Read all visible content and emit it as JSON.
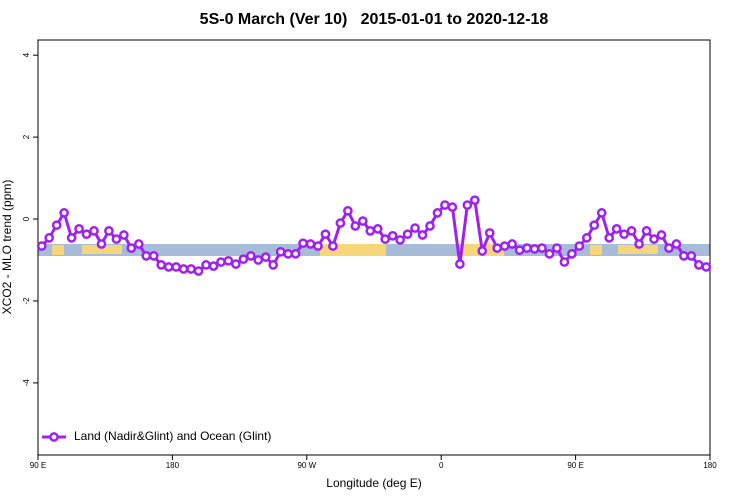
{
  "chart_data": {
    "type": "line",
    "title": "5S-0 March (Ver 10)   2015-01-01 to 2020-12-18",
    "xlabel": "Longitude (deg E)",
    "ylabel": "XCO2 - MLO trend (ppm)",
    "x": [
      92.5,
      97.5,
      102.5,
      107.5,
      112.5,
      117.5,
      122.5,
      127.5,
      132.5,
      137.5,
      142.5,
      147.5,
      152.5,
      157.5,
      162.5,
      167.5,
      172.5,
      177.5,
      182.5,
      187.5,
      192.5,
      197.5,
      202.5,
      207.5,
      212.5,
      217.5,
      222.5,
      227.5,
      232.5,
      237.5,
      242.5,
      247.5,
      252.5,
      257.5,
      262.5,
      267.5,
      272.5,
      277.5,
      282.5,
      287.5,
      292.5,
      297.5,
      302.5,
      307.5,
      312.5,
      317.5,
      322.5,
      327.5,
      332.5,
      337.5,
      342.5,
      347.5,
      352.5,
      357.5,
      362.5,
      367.5,
      372.5,
      377.5,
      382.5,
      387.5,
      392.5,
      397.5,
      402.5,
      407.5,
      412.5,
      417.5,
      422.5,
      427.5,
      432.5,
      437.5,
      442.5,
      447.5,
      452.5,
      457.5,
      462.5,
      467.5,
      472.5,
      477.5,
      482.5,
      487.5,
      492.5,
      497.5,
      502.5,
      507.5,
      512.5,
      517.5,
      522.5,
      527.5,
      532.5,
      537.5
    ],
    "series": [
      {
        "name": "Land (Nadir&Glint) and Ocean (Glint)",
        "color": "#a020f0",
        "values": [
          -0.66,
          -0.46,
          -0.15,
          0.15,
          -0.46,
          -0.24,
          -0.37,
          -0.29,
          -0.61,
          -0.29,
          -0.49,
          -0.39,
          -0.71,
          -0.61,
          -0.9,
          -0.9,
          -1.12,
          -1.17,
          -1.17,
          -1.22,
          -1.22,
          -1.27,
          -1.12,
          -1.15,
          -1.05,
          -1.02,
          -1.1,
          -0.98,
          -0.9,
          -1.0,
          -0.93,
          -1.12,
          -0.8,
          -0.85,
          -0.85,
          -0.59,
          -0.61,
          -0.66,
          -0.37,
          -0.66,
          -0.1,
          0.2,
          -0.17,
          -0.05,
          -0.29,
          -0.24,
          -0.49,
          -0.41,
          -0.51,
          -0.37,
          -0.22,
          -0.39,
          -0.17,
          0.15,
          0.34,
          0.29,
          -1.1,
          0.34,
          0.46,
          -0.78,
          -0.34,
          -0.71,
          -0.66,
          -0.61,
          -0.76,
          -0.71,
          -0.73,
          -0.71,
          -0.85,
          -0.71,
          -1.05,
          -0.85,
          -0.66,
          -0.46,
          -0.15,
          0.15,
          -0.46,
          -0.24,
          -0.37,
          -0.29,
          -0.61,
          -0.29,
          -0.49,
          -0.39,
          -0.71,
          -0.61,
          -0.9,
          -0.9,
          -1.12,
          -1.17
        ]
      }
    ],
    "xlim": [
      90,
      540
    ],
    "xticks": [
      {
        "value": 90,
        "label": "90 E"
      },
      180,
      {
        "value": 270,
        "label": "90 W"
      },
      {
        "value": 360,
        "label": "0"
      },
      {
        "value": 450,
        "label": "90 E"
      },
      {
        "value": 540,
        "label": "180"
      }
    ],
    "ylim": [
      -5.76,
      4.37
    ],
    "yticks": [
      -4,
      -2,
      0,
      2,
      4
    ],
    "legend": "lower left"
  }
}
